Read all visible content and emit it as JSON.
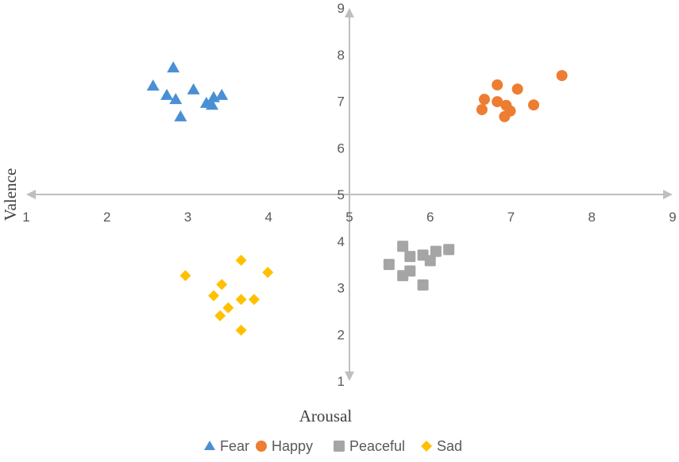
{
  "chart_data": {
    "type": "scatter",
    "title": "",
    "xlabel": "Arousal",
    "ylabel": "Valence",
    "xlim": [
      1,
      9
    ],
    "ylim": [
      1,
      9
    ],
    "axes_cross_at": [
      5,
      5
    ],
    "x_ticks": [
      "1",
      "2",
      "3",
      "4",
      "5",
      "6",
      "7",
      "8",
      "9"
    ],
    "y_ticks": [
      "1",
      "2",
      "3",
      "4",
      "5",
      "6",
      "7",
      "8",
      "9"
    ],
    "grid": false,
    "legend_position": "bottom",
    "colors": {
      "axis": "#bfbfbf"
    },
    "series": [
      {
        "name": "Fear",
        "marker": "triangle",
        "color": "#4a8fd4",
        "points": [
          [
            2.82,
            7.72
          ],
          [
            2.57,
            7.33
          ],
          [
            2.74,
            7.13
          ],
          [
            2.85,
            7.04
          ],
          [
            3.07,
            7.25
          ],
          [
            2.91,
            6.67
          ],
          [
            3.23,
            6.96
          ],
          [
            3.3,
            6.92
          ],
          [
            3.32,
            7.08
          ],
          [
            3.42,
            7.13
          ]
        ]
      },
      {
        "name": "Happy",
        "marker": "circle",
        "color": "#ed7d31",
        "points": [
          [
            7.63,
            7.55
          ],
          [
            6.83,
            7.35
          ],
          [
            7.08,
            7.26
          ],
          [
            6.67,
            7.04
          ],
          [
            6.64,
            6.82
          ],
          [
            6.83,
            6.99
          ],
          [
            6.94,
            6.91
          ],
          [
            6.99,
            6.79
          ],
          [
            6.92,
            6.67
          ],
          [
            7.28,
            6.92
          ]
        ]
      },
      {
        "name": "Peaceful",
        "marker": "square",
        "color": "#a5a5a5",
        "points": [
          [
            5.66,
            3.89
          ],
          [
            5.75,
            3.67
          ],
          [
            5.91,
            3.7
          ],
          [
            6.0,
            3.58
          ],
          [
            6.07,
            3.78
          ],
          [
            6.23,
            3.82
          ],
          [
            5.49,
            3.5
          ],
          [
            5.66,
            3.26
          ],
          [
            5.75,
            3.36
          ],
          [
            5.91,
            3.06
          ]
        ]
      },
      {
        "name": "Sad",
        "marker": "diamond",
        "color": "#ffc000",
        "points": [
          [
            2.97,
            3.26
          ],
          [
            3.66,
            3.59
          ],
          [
            3.99,
            3.33
          ],
          [
            3.42,
            3.07
          ],
          [
            3.32,
            2.83
          ],
          [
            3.5,
            2.57
          ],
          [
            3.4,
            2.4
          ],
          [
            3.66,
            2.75
          ],
          [
            3.82,
            2.75
          ],
          [
            3.66,
            2.09
          ]
        ]
      }
    ]
  }
}
